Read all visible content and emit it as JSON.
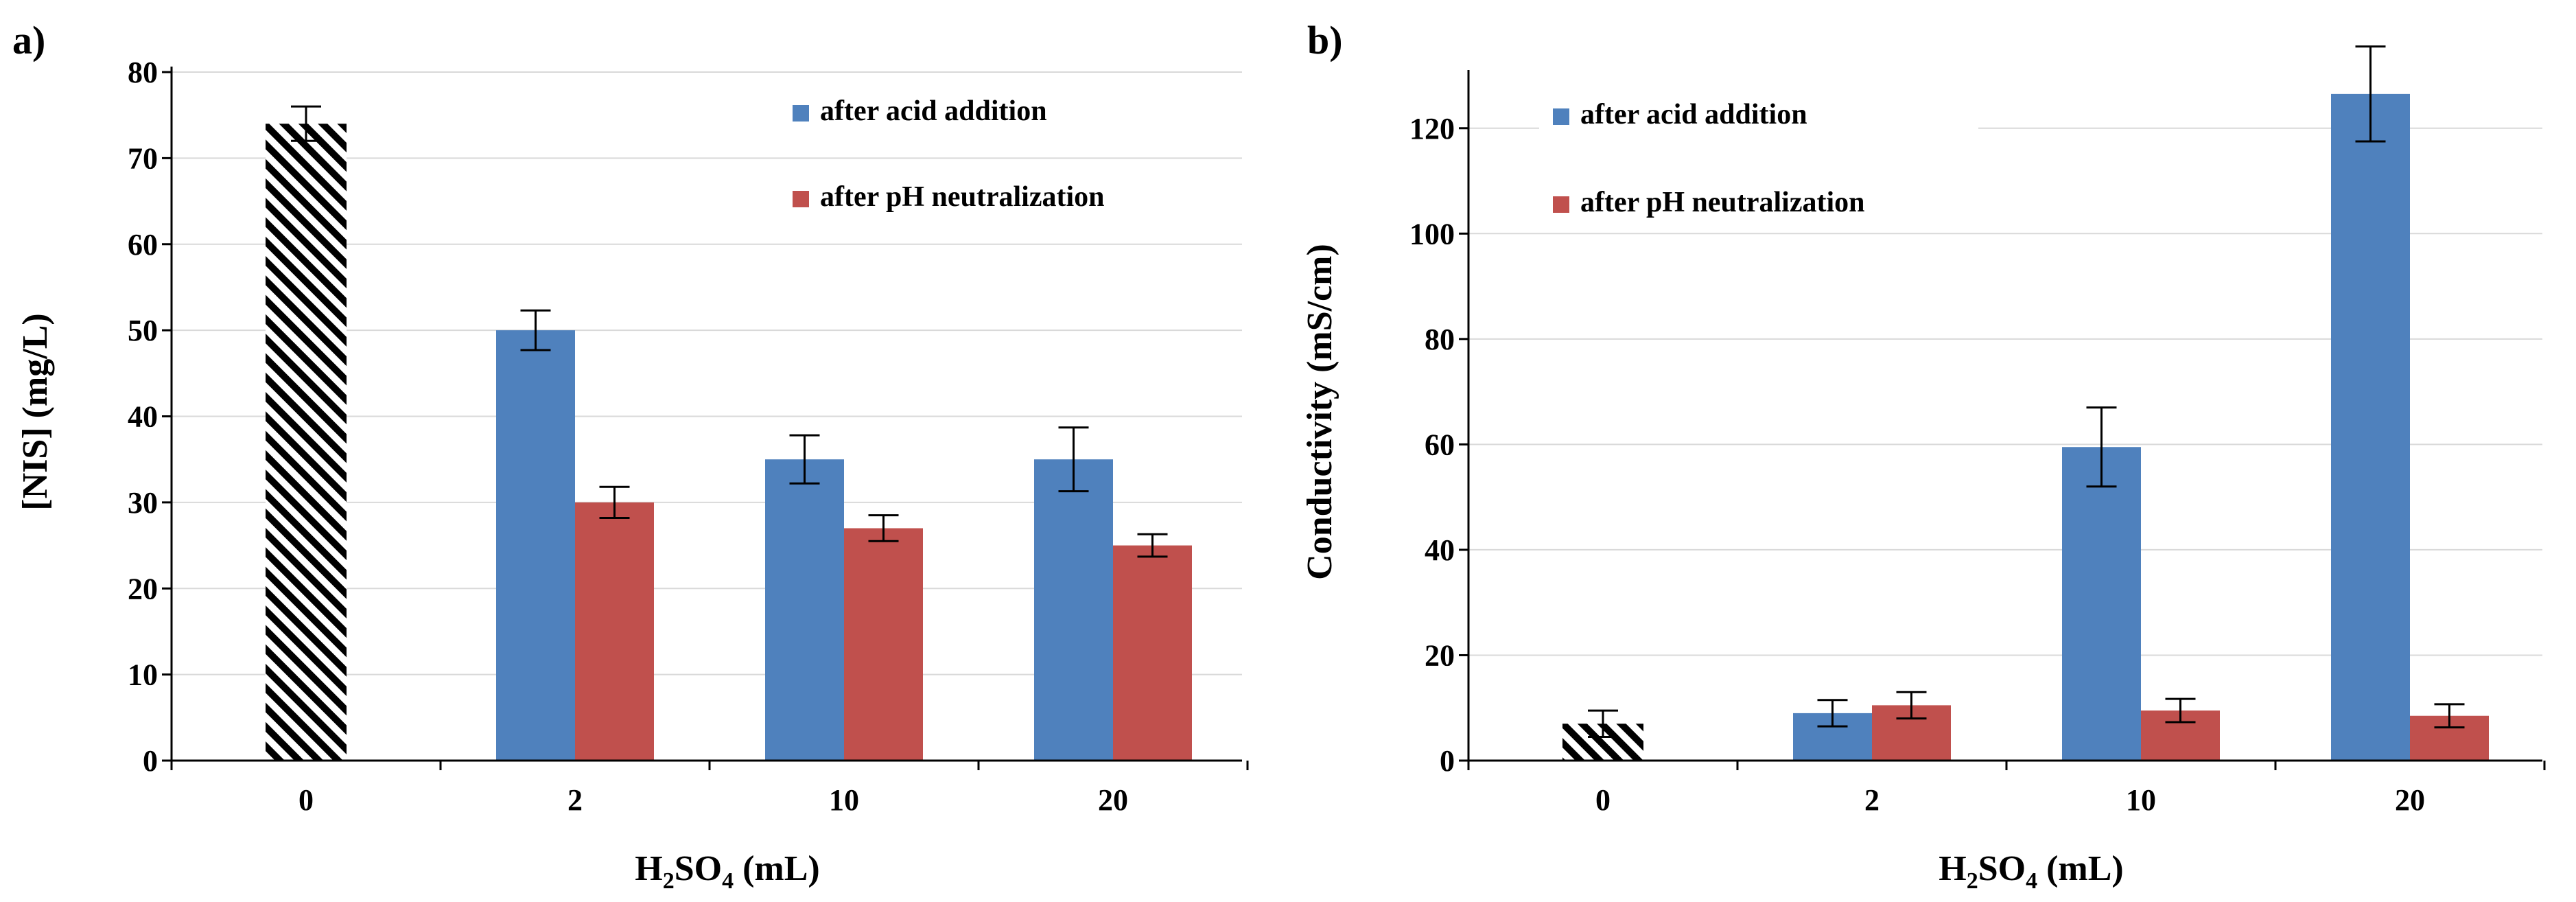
{
  "colors": {
    "acid": "#4f81bd",
    "neutral": "#c0504d",
    "control": "#000000"
  },
  "chart_data": [
    {
      "type": "bar",
      "panel_label": "a)",
      "xlabel": {
        "main": "H",
        "sub1": "2",
        "mid": "SO",
        "sub2": "4",
        "tail": " (mL)"
      },
      "ylabel": "[NIS] (mg/L)",
      "ylim": [
        0,
        80
      ],
      "yticks": [
        0,
        10,
        20,
        30,
        40,
        50,
        60,
        70,
        80
      ],
      "categories": [
        "0",
        "2",
        "10",
        "20"
      ],
      "control": {
        "category": "0",
        "value": 74,
        "error": 2,
        "pattern": "hatched"
      },
      "series": [
        {
          "name": "after acid addition",
          "color_key": "acid",
          "values": [
            null,
            50,
            35,
            35
          ],
          "errors": [
            null,
            2.3,
            2.8,
            3.7
          ]
        },
        {
          "name": "after pH neutralization",
          "color_key": "neutral",
          "values": [
            null,
            30,
            27,
            25
          ],
          "errors": [
            null,
            1.8,
            1.5,
            1.3
          ]
        }
      ],
      "legend": "top-right",
      "grid": true
    },
    {
      "type": "bar",
      "panel_label": "b)",
      "xlabel": {
        "main": "H",
        "sub1": "2",
        "mid": "SO",
        "sub2": "4",
        "tail": " (mL)"
      },
      "ylabel": "Conductivity (mS/cm)",
      "ylim": [
        0,
        130
      ],
      "yticks": [
        0,
        20,
        40,
        60,
        80,
        100,
        120
      ],
      "categories": [
        "0",
        "2",
        "10",
        "20"
      ],
      "control": {
        "category": "0",
        "value": 7,
        "error": 2.5,
        "pattern": "hatched"
      },
      "series": [
        {
          "name": "after acid addition",
          "color_key": "acid",
          "values": [
            null,
            9,
            59.5,
            126.5
          ],
          "errors": [
            null,
            2.5,
            7.5,
            9
          ]
        },
        {
          "name": "after pH neutralization",
          "color_key": "neutral",
          "values": [
            null,
            10.5,
            9.5,
            8.5
          ],
          "errors": [
            null,
            2.5,
            2.2,
            2.2
          ]
        }
      ],
      "legend": "top-left",
      "grid": true
    }
  ]
}
